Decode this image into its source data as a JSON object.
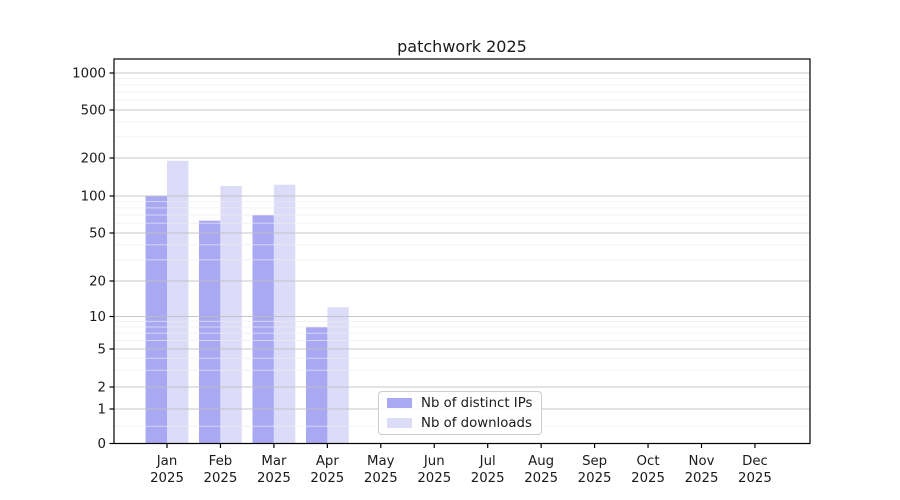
{
  "chart_data": {
    "type": "bar",
    "title": "patchwork 2025",
    "categories": [
      "Jan",
      "Feb",
      "Mar",
      "Apr",
      "May",
      "Jun",
      "Jul",
      "Aug",
      "Sep",
      "Oct",
      "Nov",
      "Dec"
    ],
    "x_tick_year": "2025",
    "series": [
      {
        "key": "distinct-ips",
        "name": "Nb of distinct IPs",
        "color": "#a9a9f3",
        "values": [
          100,
          63,
          70,
          8,
          null,
          null,
          null,
          null,
          null,
          null,
          null,
          null
        ]
      },
      {
        "key": "downloads",
        "name": "Nb of downloads",
        "color": "#dcdcf8",
        "values": [
          190,
          120,
          123,
          12,
          null,
          null,
          null,
          null,
          null,
          null,
          null,
          null
        ]
      }
    ],
    "y_ticks": [
      0,
      1,
      2,
      5,
      10,
      20,
      50,
      100,
      200,
      500,
      1000
    ],
    "y_scale": "symlog",
    "grid": {
      "major": true,
      "minor": true
    },
    "legend_position": "lower-center-inside",
    "background": "#ffffff",
    "axis_color": "#000000",
    "text_color": "#1a1a1a",
    "grid_major_color": "#bdbdbd",
    "grid_minor_color": "#ececec"
  }
}
